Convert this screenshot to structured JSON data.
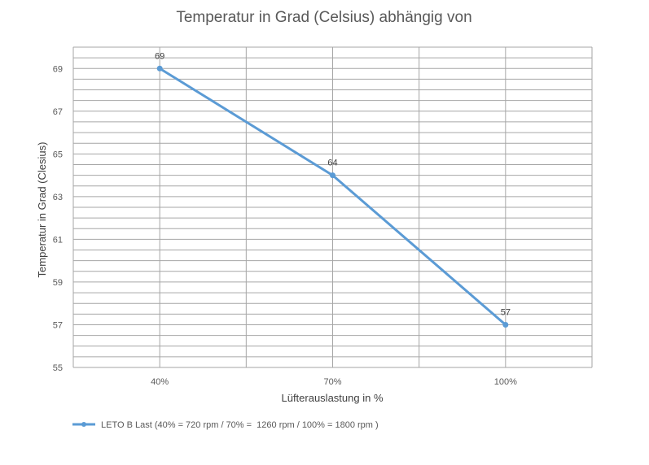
{
  "chart_data": {
    "type": "line",
    "title": "Temperatur in Grad (Celsius) abhängig von",
    "xlabel": "Lüfterauslastung in %",
    "ylabel": "Temperatur in Grad (Clesius)",
    "categories": [
      "40%",
      "70%",
      "100%"
    ],
    "series": [
      {
        "name": "LETO B Last (40% = 720 rpm / 70% =  1260 rpm / 100% = 1800 rpm )",
        "values": [
          69,
          64,
          57
        ],
        "color": "#5b9bd5"
      }
    ],
    "ylim": [
      55,
      70
    ],
    "yticks": [
      "55",
      "57",
      "59",
      "61",
      "63",
      "65",
      "67",
      "69"
    ],
    "data_labels": [
      "69",
      "64",
      "57"
    ],
    "grid": true,
    "legend_position": "bottom-left",
    "colors": {
      "grid": "#a6a6a6",
      "text": "#595959",
      "line": "#5b9bd5"
    }
  }
}
